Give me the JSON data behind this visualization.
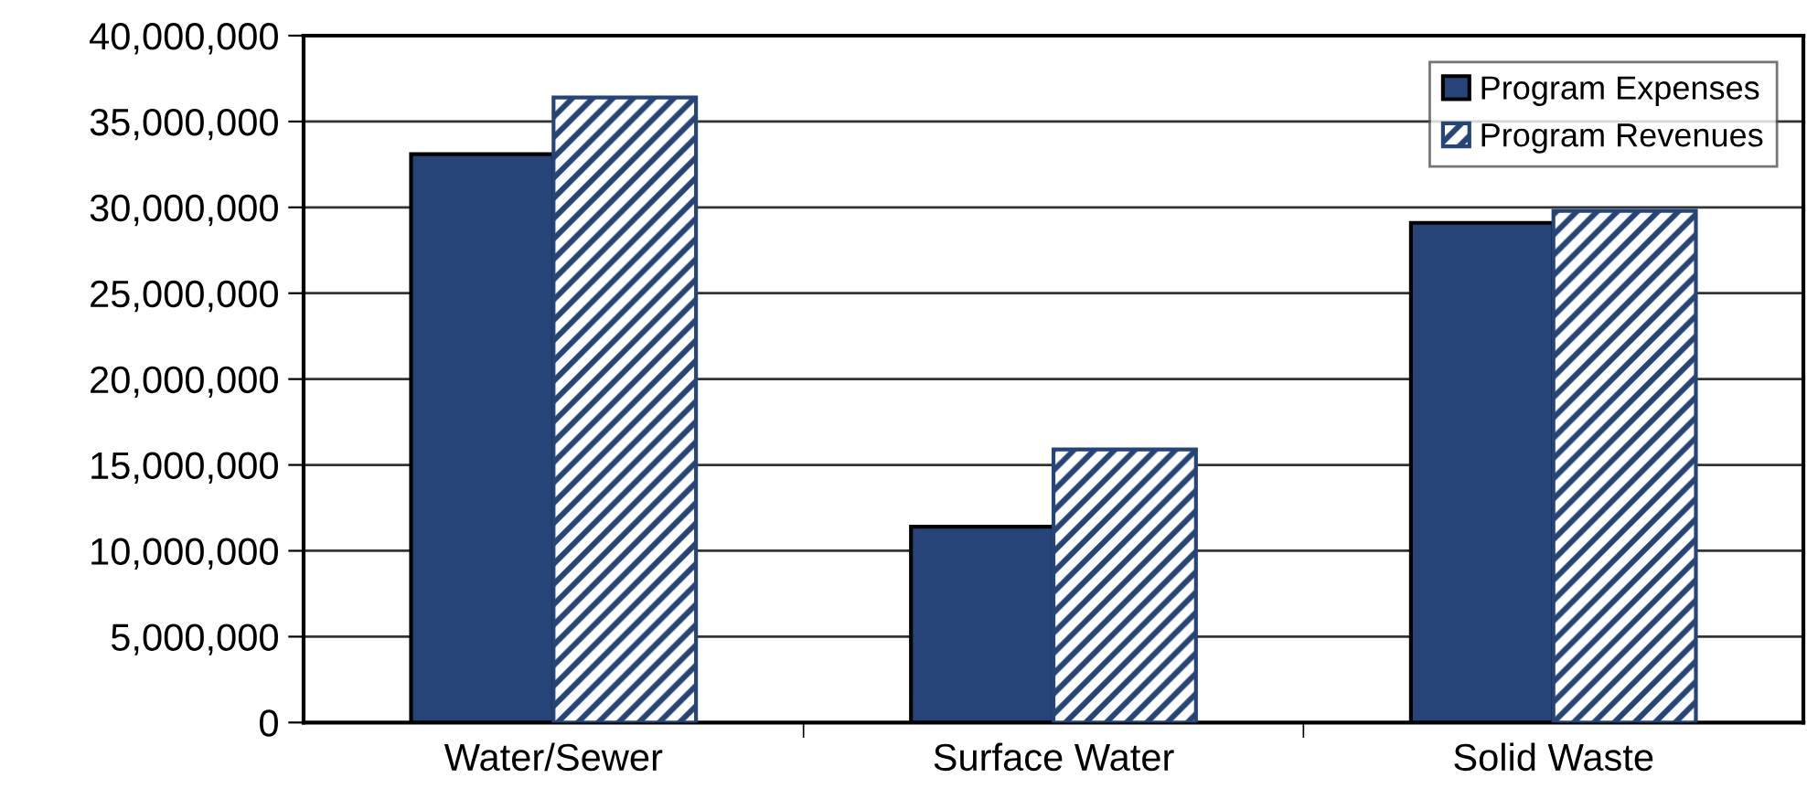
{
  "chart_data": {
    "type": "bar",
    "categories": [
      "Water/Sewer",
      "Surface Water",
      "Solid Waste"
    ],
    "series": [
      {
        "name": "Program Expenses",
        "color": "#264478",
        "values": [
          33100000,
          11400000,
          29100000
        ]
      },
      {
        "name": "Program Revenues",
        "color": "#264478",
        "values": [
          36400000,
          15900000,
          29800000
        ]
      }
    ],
    "ylim": [
      0,
      40000000
    ],
    "yticks": [
      0,
      {
        "value": 5000000,
        "label": "5,000,000"
      },
      {
        "value": 10000000,
        "label": "10,000,000"
      },
      {
        "value": 15000000,
        "label": "15,000,000"
      },
      {
        "value": 20000000,
        "label": "20,000,000"
      },
      {
        "value": 25000000,
        "label": "25,000,000"
      },
      {
        "value": 30000000,
        "label": "30,000,000"
      },
      {
        "value": 35000000,
        "label": "35,000,000"
      },
      {
        "value": 40000000,
        "label": "40,000,000"
      }
    ],
    "grid": "y",
    "legend": "top right"
  }
}
